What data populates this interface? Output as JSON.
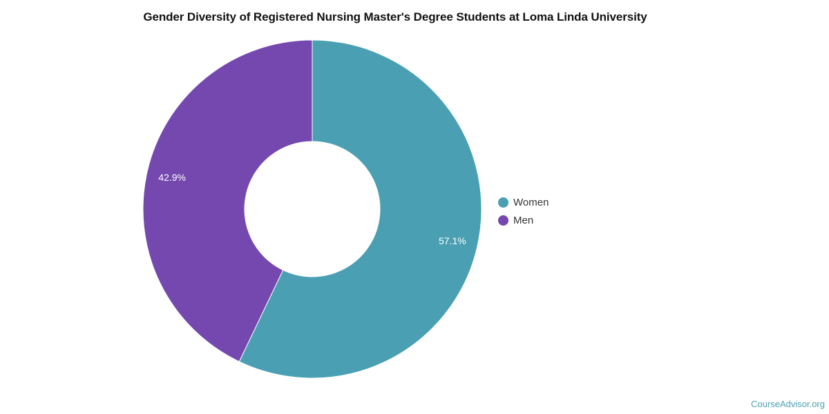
{
  "chart_data": {
    "type": "pie",
    "title": "Gender Diversity of Registered Nursing Master's Degree Students at Loma Linda University",
    "categories": [
      "Women",
      "Men"
    ],
    "values": [
      57.1,
      42.9
    ],
    "data_labels": [
      "57.1%",
      "42.9%"
    ],
    "colors": [
      "#4aa0b2",
      "#7448ae"
    ],
    "donut": true,
    "legend_position": "right"
  },
  "watermark": "CourseAdvisor.org"
}
